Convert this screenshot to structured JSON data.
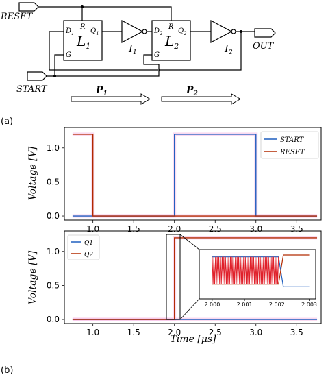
{
  "circuit": {
    "labels": {
      "reset": "RESET",
      "start": "START",
      "out": "OUT",
      "l1": "L",
      "l1_sub": "1",
      "l2": "L",
      "l2_sub": "2",
      "i1": "I",
      "i1_sub": "1",
      "i2": "I",
      "i2_sub": "2",
      "d1": "D",
      "d1_sub": "1",
      "q1": "Q",
      "q1_sub": "1",
      "d2": "D",
      "d2_sub": "2",
      "q2": "Q",
      "q2_sub": "2",
      "r": "R",
      "g": "G",
      "p1": "P",
      "p1_sub": "1",
      "p2": "P",
      "p2_sub": "2"
    }
  },
  "panel_labels": {
    "a": "(a)",
    "b": "(b)"
  },
  "colors": {
    "blue": "#1f5fbf",
    "red": "#b22a00",
    "inset_red": "#e0202a",
    "pink": "#f7c0e6"
  },
  "chart_data": [
    {
      "type": "line",
      "ylabel": "Voltage [V]",
      "xlim": [
        0.65,
        3.8
      ],
      "ylim": [
        -0.06,
        1.3
      ],
      "xticks": [
        "1.0",
        "1.5",
        "2.0",
        "2.5",
        "3.0",
        "3.5"
      ],
      "yticks": [
        "0.0",
        "0.5",
        "1.0"
      ],
      "legend_position": "top-right",
      "series": [
        {
          "name": "START",
          "x": [
            0.75,
            2.0,
            2.0,
            3.0,
            3.0,
            3.75
          ],
          "y": [
            0.0,
            0.0,
            1.2,
            1.2,
            0.0,
            0.0
          ]
        },
        {
          "name": "RESET",
          "x": [
            0.75,
            1.0,
            1.0,
            3.75
          ],
          "y": [
            1.2,
            1.2,
            0.0,
            0.0
          ]
        }
      ]
    },
    {
      "type": "line",
      "ylabel": "Voltage [V]",
      "xlabel": "Time [μs]",
      "xlim": [
        0.65,
        3.8
      ],
      "ylim": [
        -0.06,
        1.3
      ],
      "xticks": [
        "1.0",
        "1.5",
        "2.0",
        "2.5",
        "3.0",
        "3.5"
      ],
      "yticks": [
        "0.0",
        "0.5",
        "1.0"
      ],
      "legend_position": "top-left",
      "series": [
        {
          "name": "Q1",
          "x": [
            0.75,
            3.75
          ],
          "y": [
            0.0,
            0.0
          ]
        },
        {
          "name": "Q2",
          "x": [
            0.75,
            2.0,
            2.0,
            3.75
          ],
          "y": [
            0.0,
            0.0,
            1.2,
            1.2
          ]
        }
      ],
      "inset": {
        "xlim": [
          1.9996,
          2.0032
        ],
        "xticks": [
          "2.000",
          "2.001",
          "2.002",
          "2.003"
        ],
        "oscillation": {
          "start": 2.0,
          "end": 2.00205,
          "cycles": 40,
          "low": 0.35,
          "high": 1.1
        },
        "q1_series": {
          "x": [
            2.0,
            2.00205,
            2.0022,
            2.003
          ],
          "y": [
            1.1,
            1.1,
            0.28,
            0.28
          ]
        },
        "q2_series": {
          "x": [
            2.0,
            2.00205,
            2.0022,
            2.003
          ],
          "y": [
            0.35,
            0.35,
            1.15,
            1.15
          ]
        }
      }
    }
  ]
}
